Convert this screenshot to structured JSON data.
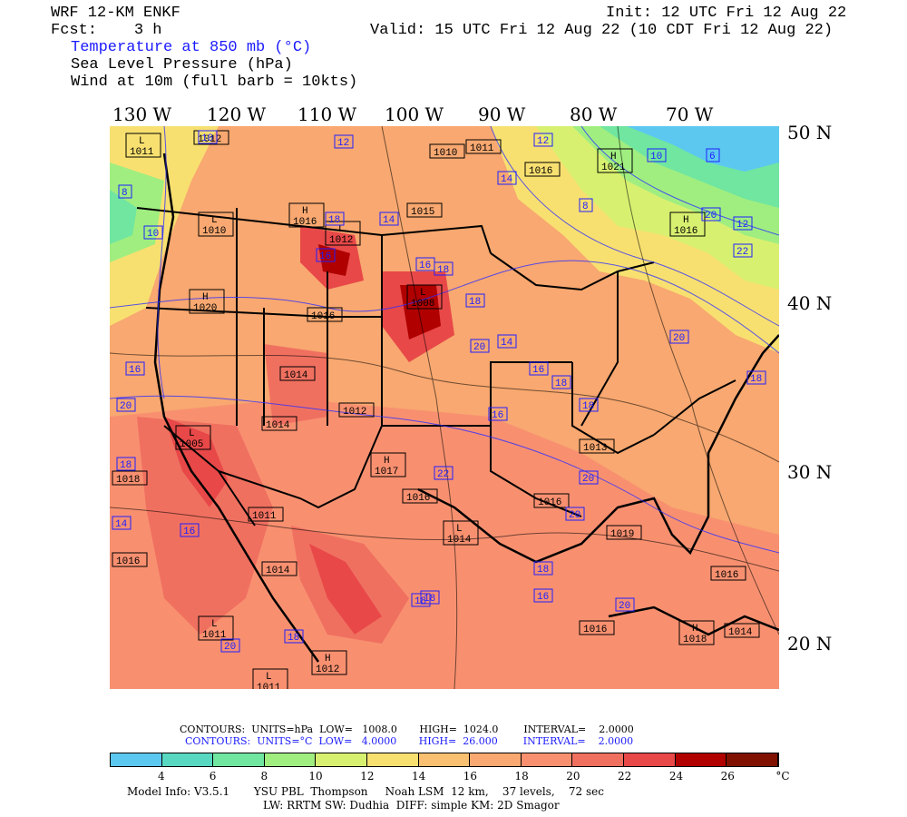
{
  "header": {
    "model": "WRF 12-KM ENKF",
    "fcst": "Fcst:    3 h",
    "init": "Init: 12 UTC Fri 12 Aug 22",
    "valid": "Valid: 15 UTC Fri 12 Aug 22 (10 CDT Fri 12 Aug 22)",
    "field1": "Temperature at 850 mb (°C)",
    "field2": "Sea Level Pressure (hPa)",
    "field3": "Wind at 10m (full barb = 10kts)"
  },
  "longitudes": [
    "130 W",
    "120 W",
    "110 W",
    "100 W",
    "90 W",
    "80 W",
    "70 W"
  ],
  "latitudes": [
    "50 N",
    "40 N",
    "30 N",
    "20 N"
  ],
  "pressure_labels": [
    {
      "t": "L",
      "v": "1011"
    },
    {
      "t": "",
      "v": "1012"
    },
    {
      "t": "",
      "v": "1010"
    },
    {
      "t": "",
      "v": "1011"
    },
    {
      "t": "",
      "v": "1016"
    },
    {
      "t": "H",
      "v": "1021"
    },
    {
      "t": "H",
      "v": "1016"
    },
    {
      "t": "L",
      "v": "1010"
    },
    {
      "t": "",
      "v": "1015"
    },
    {
      "t": "L",
      "v": "1008"
    },
    {
      "t": "H",
      "v": "1016"
    },
    {
      "t": "H",
      "v": "1020"
    },
    {
      "t": "",
      "v": "1016"
    },
    {
      "t": "L",
      "v": "1012"
    },
    {
      "t": "",
      "v": "1014"
    },
    {
      "t": "",
      "v": "1012"
    },
    {
      "t": "",
      "v": "1014"
    },
    {
      "t": "L",
      "v": "1005"
    },
    {
      "t": "H",
      "v": "1017"
    },
    {
      "t": "",
      "v": "1016"
    },
    {
      "t": "",
      "v": "1013"
    },
    {
      "t": "",
      "v": "1016"
    },
    {
      "t": "",
      "v": "1018"
    },
    {
      "t": "",
      "v": "1011"
    },
    {
      "t": "L",
      "v": "1014"
    },
    {
      "t": "",
      "v": "1019"
    },
    {
      "t": "",
      "v": "1016"
    },
    {
      "t": "",
      "v": "1014"
    },
    {
      "t": "",
      "v": "1016"
    },
    {
      "t": "",
      "v": "1016"
    },
    {
      "t": "L",
      "v": "1011"
    },
    {
      "t": "H",
      "v": "1012"
    },
    {
      "t": "H",
      "v": "1018"
    },
    {
      "t": "",
      "v": "1014"
    },
    {
      "t": "L",
      "v": "1011"
    }
  ],
  "temp_labels": [
    "8",
    "10",
    "10",
    "12",
    "14",
    "16",
    "18",
    "16",
    "18",
    "14",
    "12",
    "8",
    "6",
    "10",
    "12",
    "18",
    "20",
    "14",
    "16",
    "18",
    "16",
    "18",
    "20",
    "22",
    "20",
    "18",
    "16",
    "18",
    "20",
    "16",
    "14",
    "18",
    "18",
    "16",
    "20",
    "18",
    "20",
    "20",
    "22",
    "20",
    "18"
  ],
  "contours_line1": "CONTOURS:  UNITS=hPa  LOW=   1008.0       HIGH=  1024.0        INTERVAL=    2.0000",
  "contours_line2": "CONTOURS:  UNITS=°C  LOW=   4.0000       HIGH=  26.000        INTERVAL=    2.0000",
  "colorbar": {
    "labels": [
      "4",
      "6",
      "8",
      "10",
      "12",
      "14",
      "16",
      "18",
      "20",
      "22",
      "24",
      "26"
    ],
    "unit": "°C",
    "colors": [
      "#5cc8f0",
      "#58d8c0",
      "#70e6a0",
      "#a0ee80",
      "#d8f070",
      "#f8e070",
      "#f8c070",
      "#f8a870",
      "#f89070",
      "#f07060",
      "#e84848",
      "#b00000",
      "#801000"
    ]
  },
  "footer1": "Model Info: V3.5.1       YSU PBL  Thompson     Noah LSM  12 km,    37 levels,    72 sec",
  "footer2": "LW: RRTM SW: Dudhia  DIFF: simple KM: 2D Smagor"
}
